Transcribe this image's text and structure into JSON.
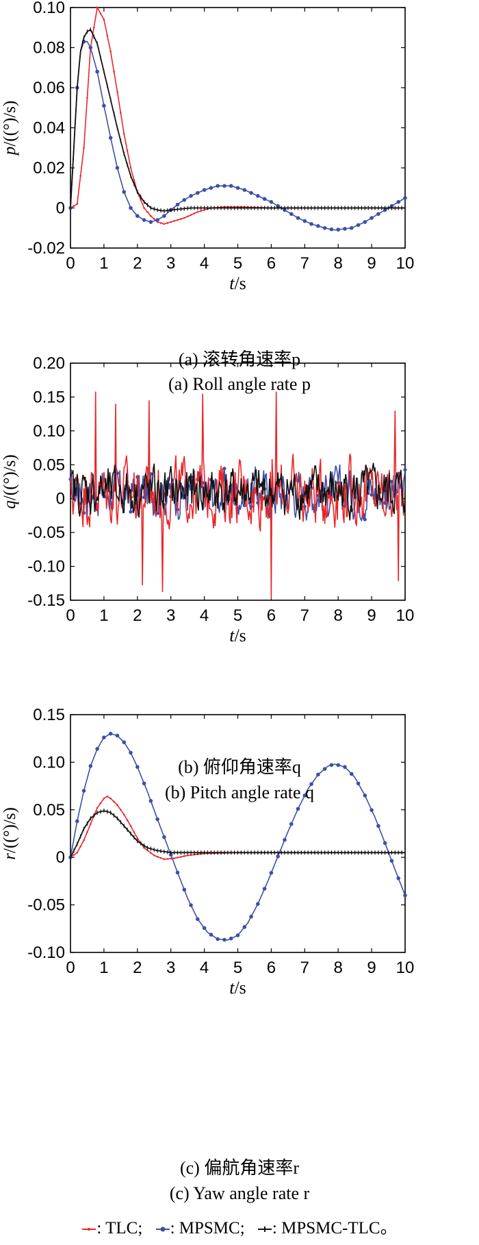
{
  "chart_data": [
    {
      "type": "line",
      "ylabel_var": "p",
      "ylabel_unit": "/((°)/s)",
      "xlabel_var": "t",
      "xlabel_unit": "/s",
      "xlim": [
        0,
        10
      ],
      "ylim": [
        -0.02,
        0.1
      ],
      "xticks": [
        "0",
        "1",
        "2",
        "3",
        "4",
        "5",
        "6",
        "7",
        "8",
        "9",
        "10"
      ],
      "yticks": [
        "-0.02",
        "0",
        "0.02",
        "0.04",
        "0.06",
        "0.08",
        "0.10"
      ],
      "caption_cn": "(a) 滚转角速率p",
      "caption_en": "(a) Roll angle rate p",
      "series": [
        {
          "name": "TLC",
          "x": [
            0,
            0.2,
            0.4,
            0.6,
            0.8,
            1.0,
            1.2,
            1.4,
            1.6,
            1.8,
            2.0,
            2.2,
            2.4,
            2.6,
            2.8,
            3.0,
            3.4,
            3.8,
            4.2,
            4.6,
            5.0,
            5.5,
            6.0,
            7,
            8,
            9,
            10
          ],
          "y": [
            0,
            0.002,
            0.03,
            0.08,
            0.1,
            0.094,
            0.078,
            0.058,
            0.037,
            0.02,
            0.008,
            0,
            -0.004,
            -0.007,
            -0.008,
            -0.007,
            -0.005,
            -0.002,
            0,
            0.0005,
            0.0005,
            0.0003,
            0,
            0,
            0,
            0,
            0
          ]
        },
        {
          "name": "MPSMC",
          "x": [
            0,
            0.1,
            0.2,
            0.3,
            0.4,
            0.5,
            0.6,
            0.8,
            1.0,
            1.2,
            1.4,
            1.6,
            1.8,
            2.0,
            2.2,
            2.4,
            2.6,
            2.8,
            3.0,
            3.3,
            3.6,
            4.0,
            4.4,
            4.8,
            5.2,
            5.6,
            6.0,
            6.4,
            6.8,
            7.2,
            7.6,
            7.9,
            8.4,
            8.8,
            9.2,
            9.6,
            10
          ],
          "y": [
            0,
            0.03,
            0.06,
            0.078,
            0.083,
            0.083,
            0.08,
            0.068,
            0.051,
            0.035,
            0.02,
            0.008,
            0,
            -0.004,
            -0.006,
            -0.007,
            -0.006,
            -0.004,
            -0.001,
            0.003,
            0.006,
            0.009,
            0.011,
            0.011,
            0.009,
            0.006,
            0.003,
            -0.001,
            -0.005,
            -0.008,
            -0.01,
            -0.011,
            -0.01,
            -0.007,
            -0.003,
            0.001,
            0.005
          ]
        },
        {
          "name": "MPSMC-TLC",
          "x": [
            0,
            0.1,
            0.2,
            0.3,
            0.4,
            0.5,
            0.6,
            0.8,
            1.0,
            1.2,
            1.4,
            1.6,
            1.8,
            2.0,
            2.2,
            2.4,
            2.6,
            2.8,
            3.0,
            3.3,
            3.6,
            4.0,
            4.5,
            5,
            6,
            7,
            8,
            9,
            10
          ],
          "y": [
            0,
            0.03,
            0.06,
            0.078,
            0.085,
            0.088,
            0.089,
            0.082,
            0.068,
            0.054,
            0.04,
            0.027,
            0.016,
            0.008,
            0.003,
            0,
            -0.001,
            -0.0015,
            -0.001,
            -0.0005,
            0,
            0,
            0,
            0,
            0,
            0,
            0,
            0,
            0
          ]
        }
      ]
    },
    {
      "type": "line",
      "ylabel_var": "q",
      "ylabel_unit": "/((°)/s)",
      "xlabel_var": "t",
      "xlabel_unit": "/s",
      "xlim": [
        0,
        10
      ],
      "ylim": [
        -0.15,
        0.2
      ],
      "xticks": [
        "0",
        "1",
        "2",
        "3",
        "4",
        "5",
        "6",
        "7",
        "8",
        "9",
        "10"
      ],
      "yticks": [
        "-0.15",
        "-0.10",
        "-0.05",
        "0",
        "0.05",
        "0.10",
        "0.15",
        "0.20"
      ],
      "caption_cn": "(b) 俯仰角速率q",
      "caption_en": "(b) Pitch angle rate q",
      "noise": {
        "samples": 400,
        "peaks_tlc": [
          [
            0.75,
            0.158
          ],
          [
            1.35,
            0.14
          ],
          [
            2.35,
            0.145
          ],
          [
            3.95,
            0.155
          ],
          [
            6.15,
            0.158
          ],
          [
            9.7,
            0.13
          ],
          [
            2.75,
            -0.138
          ],
          [
            6.0,
            -0.148
          ],
          [
            2.15,
            -0.128
          ],
          [
            9.8,
            -0.122
          ]
        ]
      },
      "series": [
        {
          "name": "TLC",
          "amplitude": 0.06
        },
        {
          "name": "MPSMC",
          "amplitude": 0.045
        },
        {
          "name": "MPSMC-TLC",
          "amplitude": 0.045
        }
      ]
    },
    {
      "type": "line",
      "ylabel_var": "r",
      "ylabel_unit": "/((°)/s)",
      "xlabel_var": "t",
      "xlabel_unit": "/s",
      "xlim": [
        0,
        10
      ],
      "ylim": [
        -0.1,
        0.15
      ],
      "xticks": [
        "0",
        "1",
        "2",
        "3",
        "4",
        "5",
        "6",
        "7",
        "8",
        "9",
        "10"
      ],
      "yticks": [
        "-0.10",
        "-0.05",
        "0",
        "0.05",
        "0.10",
        "0.15"
      ],
      "caption_cn": "(c) 偏航角速率r",
      "caption_en": "(c) Yaw angle rate r",
      "series": [
        {
          "name": "TLC",
          "x": [
            0,
            0.2,
            0.4,
            0.6,
            0.8,
            1.0,
            1.1,
            1.2,
            1.4,
            1.6,
            1.8,
            2.0,
            2.2,
            2.5,
            2.8,
            3.1,
            3.5,
            4,
            4.5,
            5,
            6,
            7,
            8,
            9,
            10
          ],
          "y": [
            0,
            0.005,
            0.018,
            0.035,
            0.052,
            0.062,
            0.064,
            0.062,
            0.055,
            0.045,
            0.033,
            0.02,
            0.01,
            0.002,
            -0.002,
            -0.001,
            0.002,
            0.004,
            0.0045,
            0.005,
            0.005,
            0.005,
            0.005,
            0.005,
            0.005
          ]
        },
        {
          "name": "MPSMC",
          "x": [
            0,
            0.2,
            0.4,
            0.6,
            0.8,
            1.0,
            1.2,
            1.4,
            1.6,
            1.8,
            2.0,
            2.3,
            2.6,
            2.9,
            3.2,
            3.5,
            3.8,
            4.1,
            4.4,
            4.7,
            5.0,
            5.3,
            5.6,
            5.9,
            6.2,
            6.5,
            6.8,
            7.1,
            7.4,
            7.7,
            7.9,
            8.2,
            8.5,
            8.8,
            9.1,
            9.4,
            9.7,
            10
          ],
          "y": [
            0,
            0.038,
            0.07,
            0.096,
            0.114,
            0.126,
            0.13,
            0.128,
            0.121,
            0.11,
            0.095,
            0.069,
            0.04,
            0.012,
            -0.016,
            -0.043,
            -0.065,
            -0.079,
            -0.086,
            -0.087,
            -0.082,
            -0.069,
            -0.049,
            -0.025,
            0.001,
            0.027,
            0.051,
            0.072,
            0.087,
            0.096,
            0.098,
            0.095,
            0.084,
            0.065,
            0.042,
            0.015,
            -0.013,
            -0.04
          ]
        },
        {
          "name": "MPSMC-TLC",
          "x": [
            0,
            0.2,
            0.4,
            0.6,
            0.8,
            1.0,
            1.2,
            1.4,
            1.6,
            1.8,
            2.0,
            2.3,
            2.6,
            3.0,
            3.5,
            4,
            5,
            6,
            7,
            8,
            9,
            10
          ],
          "y": [
            0,
            0.014,
            0.03,
            0.041,
            0.047,
            0.049,
            0.047,
            0.041,
            0.033,
            0.025,
            0.017,
            0.01,
            0.007,
            0.005,
            0.005,
            0.005,
            0.005,
            0.005,
            0.005,
            0.005,
            0.005,
            0.005
          ]
        }
      ]
    }
  ],
  "legend": [
    {
      "label": ": TLC;",
      "color": "#e8262a"
    },
    {
      "label": ": MPSMC;",
      "color": "#3d4fa8"
    },
    {
      "label": ": MPSMC-TLC。",
      "color": "#111111"
    }
  ],
  "colors": {
    "TLC": "#e8262a",
    "MPSMC": "#3d4fa8",
    "MPSMC-TLC": "#111111"
  }
}
